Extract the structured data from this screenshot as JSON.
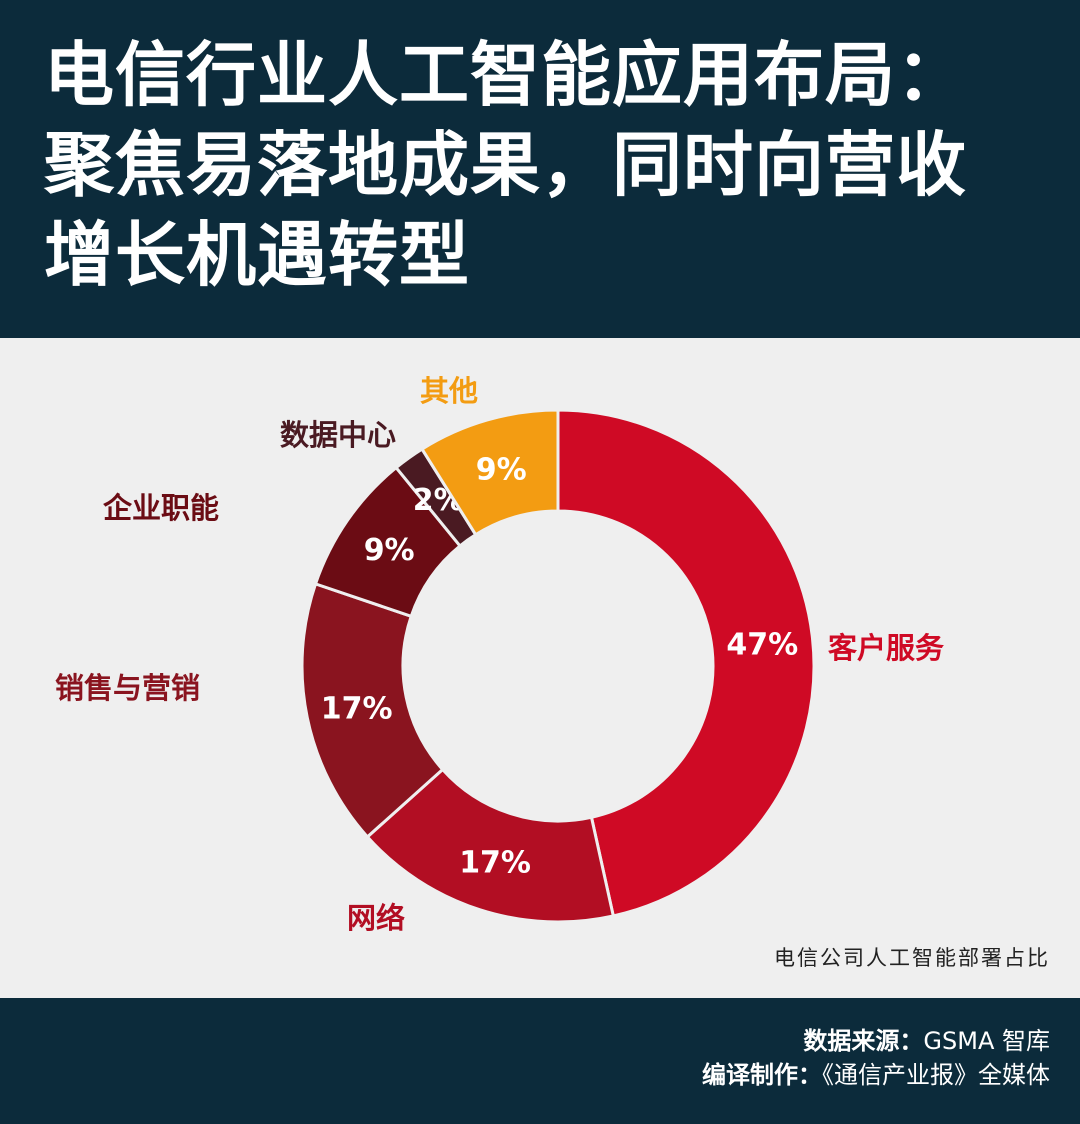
{
  "header": {
    "title_lines": [
      "电信行业人工智能应用布局：",
      "聚焦易落地成果，同时向营收",
      "增长机遇转型"
    ]
  },
  "chart_data": {
    "type": "pie",
    "donut": true,
    "title": "",
    "caption": "电信公司人工智能部署占比",
    "slices": [
      {
        "label": "客户服务",
        "value": 47,
        "value_label": "47%",
        "color": "#cf0a25",
        "label_color": "#cf0a25"
      },
      {
        "label": "网络",
        "value": 17,
        "value_label": "17%",
        "color": "#b20e23",
        "label_color": "#b20e23"
      },
      {
        "label": "销售与营销",
        "value": 17,
        "value_label": "17%",
        "color": "#8a141f",
        "label_color": "#8a141f"
      },
      {
        "label": "企业职能",
        "value": 9,
        "value_label": "9%",
        "color": "#6b0c14",
        "label_color": "#6b0c14"
      },
      {
        "label": "数据中心",
        "value": 2,
        "value_label": "2%",
        "color": "#4a1a22",
        "label_color": "#4a1a22"
      },
      {
        "label": "其他",
        "value": 9,
        "value_label": "9%",
        "color": "#f39c12",
        "label_color": "#f39c12"
      }
    ],
    "start": "top",
    "direction": "clockwise",
    "separator_color": "#efefef"
  },
  "footer": {
    "source_key": "数据来源：",
    "source_value": "GSMA 智库",
    "compile_key": "编译制作：",
    "compile_value": "《通信产业报》全媒体"
  },
  "colors": {
    "header_bg": "#0c2b3b",
    "chart_bg": "#efefef",
    "text_light": "#ffffff"
  }
}
